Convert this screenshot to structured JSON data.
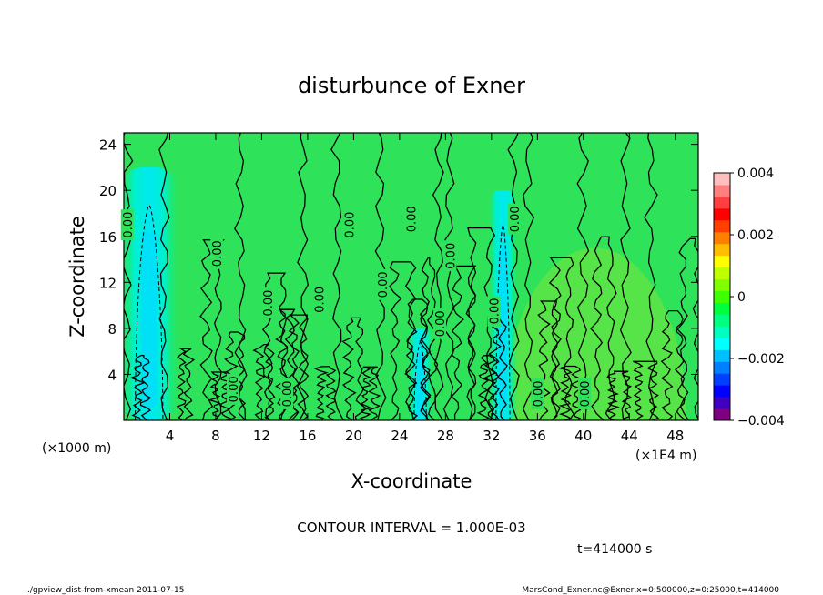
{
  "chart_data": {
    "type": "heatmap",
    "title": "disturbunce of Exner",
    "xlabel": "X-coordinate",
    "ylabel": "Z-coordinate",
    "x_unit_left": "(×1000 m)",
    "x_unit_right": "(×1E4 m)",
    "xticks": [
      "4",
      "8",
      "12",
      "16",
      "20",
      "24",
      "28",
      "32",
      "36",
      "40",
      "44",
      "48"
    ],
    "yticks": [
      "4",
      "8",
      "12",
      "16",
      "20",
      "24"
    ],
    "xlim": [
      0,
      50
    ],
    "ylim": [
      0,
      25
    ],
    "contour_interval_text": "CONTOUR INTERVAL = 1.000E-03",
    "time_text": "t=414000 s",
    "footer_left": "./gpview_dist-from-xmean  2011-07-15",
    "footer_right": "MarsCond_Exner.nc@Exner,x=0:500000,z=0:25000,t=414000",
    "colorbar": {
      "range": [
        -0.004,
        0.004
      ],
      "tick_labels": [
        "0.004",
        "0.002",
        "0",
        "−0.002",
        "−0.004"
      ],
      "tick_values": [
        0.004,
        0.002,
        0,
        -0.002,
        -0.004
      ],
      "colors": [
        "#7f007f",
        "#3f00bf",
        "#0000ff",
        "#003fff",
        "#007fff",
        "#00bfff",
        "#00ffff",
        "#00ffbf",
        "#00ff7f",
        "#00ff3f",
        "#3fff00",
        "#7fff00",
        "#bfff00",
        "#ffff00",
        "#ffbf00",
        "#ff7f00",
        "#ff3f00",
        "#ff0000",
        "#ff3f3f",
        "#ff7f7f",
        "#ffbfbf"
      ]
    },
    "contour_labels": [
      {
        "text": "0.00",
        "x": 0.3,
        "z": 17.0
      },
      {
        "text": "0.00",
        "x": 8.1,
        "z": 14.5
      },
      {
        "text": "0.00",
        "x": 12.5,
        "z": 10.2
      },
      {
        "text": "0.00",
        "x": 9.5,
        "z": 2.7
      },
      {
        "text": "0.00",
        "x": 14.2,
        "z": 2.3
      },
      {
        "text": "0.00",
        "x": 17.0,
        "z": 10.5
      },
      {
        "text": "0.00",
        "x": 19.6,
        "z": 17.0
      },
      {
        "text": "0.00",
        "x": 22.5,
        "z": 11.8
      },
      {
        "text": "0.00",
        "x": 25.0,
        "z": 17.5
      },
      {
        "text": "0.00",
        "x": 27.5,
        "z": 8.4
      },
      {
        "text": "0.00",
        "x": 28.4,
        "z": 14.3
      },
      {
        "text": "0.00",
        "x": 32.2,
        "z": 9.5
      },
      {
        "text": "0.00",
        "x": 34.0,
        "z": 17.5
      },
      {
        "text": "0.00",
        "x": 36.0,
        "z": 2.3
      },
      {
        "text": "0.00",
        "x": 40.1,
        "z": 2.3
      }
    ],
    "features": [
      {
        "kind": "negative-anomaly",
        "x_center": 2.2,
        "x_halfwidth": 1.6,
        "z_top": 22.0,
        "value": -0.0012
      },
      {
        "kind": "negative-anomaly",
        "x_center": 25.8,
        "x_halfwidth": 0.7,
        "z_top": 8.0,
        "value": -0.0008
      },
      {
        "kind": "negative-anomaly",
        "x_center": 33.0,
        "x_halfwidth": 0.8,
        "z_top": 20.0,
        "value": -0.0009
      },
      {
        "kind": "positive-anomaly",
        "x_center": 41.0,
        "x_halfwidth": 8.0,
        "z_top": 15.0,
        "value": 0.0004
      }
    ]
  }
}
